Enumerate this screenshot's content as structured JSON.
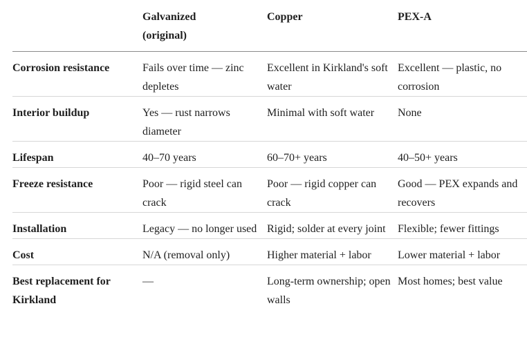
{
  "table": {
    "columns": [
      "Galvanized (original)",
      "Copper",
      "PEX-A"
    ],
    "rows": [
      {
        "label": "Corrosion resistance",
        "cells": [
          "Fails over time — zinc depletes",
          "Excellent in Kirkland's soft water",
          "Excellent — plastic, no corrosion"
        ]
      },
      {
        "label": "Interior buildup",
        "cells": [
          "Yes — rust narrows diameter",
          "Minimal with soft water",
          "None"
        ]
      },
      {
        "label": "Lifespan",
        "cells": [
          "40–70 years",
          "60–70+ years",
          "40–50+ years"
        ]
      },
      {
        "label": "Freeze resistance",
        "cells": [
          "Poor — rigid steel can crack",
          "Poor — rigid copper can crack",
          "Good — PEX expands and recovers"
        ]
      },
      {
        "label": "Installation",
        "cells": [
          "Legacy — no longer used",
          "Rigid; solder at every joint",
          "Flexible; fewer fittings"
        ]
      },
      {
        "label": "Cost",
        "cells": [
          "N/A (removal only)",
          "Higher material + labor",
          "Lower material + labor"
        ]
      },
      {
        "label": "Best replacement for Kirkland",
        "cells": [
          "—",
          "Long-term ownership; open walls",
          "Most homes; best value"
        ]
      }
    ]
  }
}
